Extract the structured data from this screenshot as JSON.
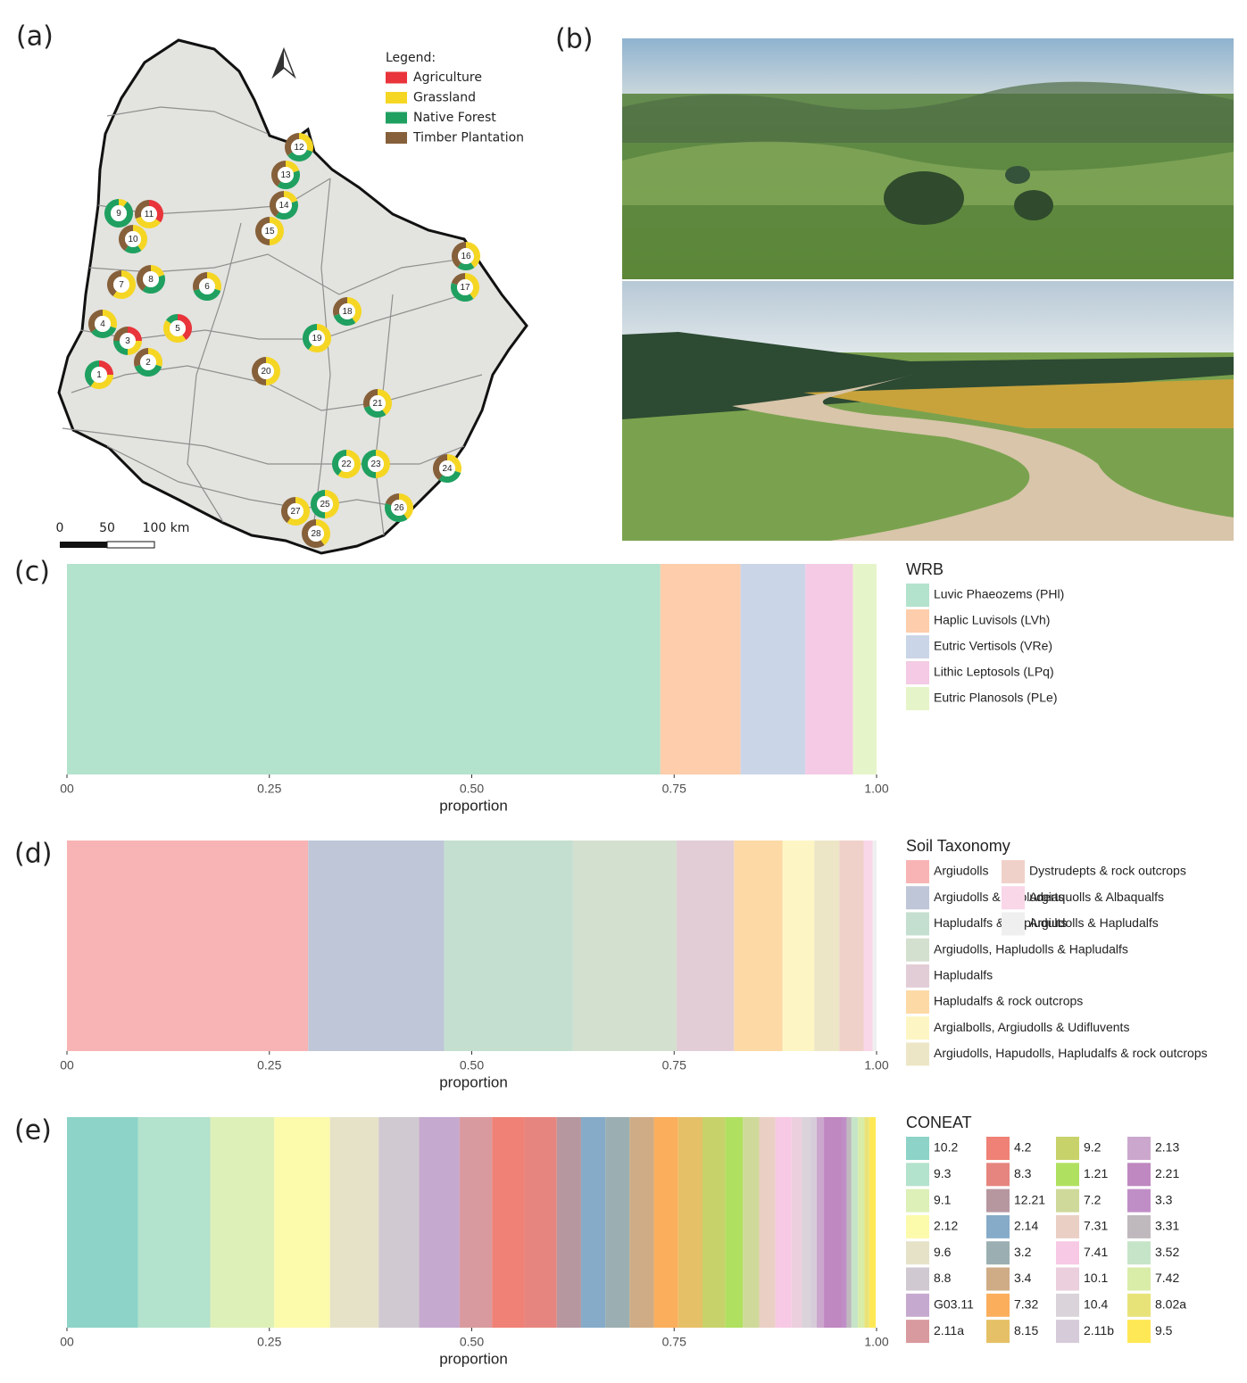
{
  "panels": [
    "(a)",
    "(b)",
    "(c)",
    "(d)",
    "(e)"
  ],
  "map": {
    "legend_title": "Legend:",
    "classes": [
      {
        "name": "Agriculture",
        "color": "#e8343a"
      },
      {
        "name": "Grassland",
        "color": "#f5d623"
      },
      {
        "name": "Native Forest",
        "color": "#1fa060"
      },
      {
        "name": "Timber Plantation",
        "color": "#86603a"
      }
    ],
    "sites": [
      {
        "label": "1",
        "values": [
          25,
          35,
          40,
          0
        ]
      },
      {
        "label": "2",
        "values": [
          0,
          30,
          40,
          30
        ]
      },
      {
        "label": "3",
        "values": [
          25,
          25,
          25,
          25
        ]
      },
      {
        "label": "4",
        "values": [
          0,
          30,
          35,
          35
        ]
      },
      {
        "label": "5",
        "values": [
          40,
          45,
          15,
          0
        ]
      },
      {
        "label": "6",
        "values": [
          0,
          30,
          40,
          30
        ]
      },
      {
        "label": "7",
        "values": [
          0,
          60,
          0,
          40
        ]
      },
      {
        "label": "8",
        "values": [
          0,
          20,
          40,
          40
        ]
      },
      {
        "label": "9",
        "values": [
          0,
          10,
          90,
          0
        ]
      },
      {
        "label": "10",
        "values": [
          0,
          40,
          20,
          40
        ]
      },
      {
        "label": "11",
        "values": [
          35,
          35,
          0,
          30
        ]
      },
      {
        "label": "12",
        "values": [
          0,
          30,
          35,
          35
        ]
      },
      {
        "label": "13",
        "values": [
          0,
          20,
          40,
          40
        ]
      },
      {
        "label": "14",
        "values": [
          0,
          20,
          40,
          40
        ]
      },
      {
        "label": "15",
        "values": [
          0,
          50,
          0,
          50
        ]
      },
      {
        "label": "16",
        "values": [
          0,
          40,
          20,
          40
        ]
      },
      {
        "label": "17",
        "values": [
          0,
          40,
          40,
          20
        ]
      },
      {
        "label": "18",
        "values": [
          0,
          40,
          30,
          30
        ]
      },
      {
        "label": "19",
        "values": [
          0,
          60,
          40,
          0
        ]
      },
      {
        "label": "20",
        "values": [
          0,
          50,
          0,
          50
        ]
      },
      {
        "label": "21",
        "values": [
          0,
          40,
          30,
          30
        ]
      },
      {
        "label": "22",
        "values": [
          0,
          60,
          40,
          0
        ]
      },
      {
        "label": "23",
        "values": [
          0,
          50,
          50,
          0
        ]
      },
      {
        "label": "24",
        "values": [
          0,
          30,
          30,
          40
        ]
      },
      {
        "label": "25",
        "values": [
          0,
          50,
          50,
          0
        ]
      },
      {
        "label": "26",
        "values": [
          0,
          40,
          40,
          20
        ]
      },
      {
        "label": "27",
        "values": [
          0,
          60,
          0,
          40
        ]
      },
      {
        "label": "28",
        "values": [
          0,
          40,
          0,
          60
        ]
      }
    ],
    "scale_labels": [
      "0",
      "50",
      "100 km"
    ]
  },
  "chart_data": [
    {
      "type": "stacked-bar",
      "legend_title": "WRB",
      "xlabel": "proportion",
      "xlim": [
        0,
        1
      ],
      "xticks": [
        {
          "value": 0,
          "label": "00"
        },
        {
          "value": 0.25,
          "label": "0.25"
        },
        {
          "value": 0.5,
          "label": "0.50"
        },
        {
          "value": 0.75,
          "label": "0.75"
        },
        {
          "value": 1,
          "label": "1.00"
        }
      ],
      "series": [
        {
          "name": "Luvic Phaeozems (PHl)",
          "color": "#b3e2cd",
          "values": [
            0.733
          ]
        },
        {
          "name": "Haplic Luvisols (LVh)",
          "color": "#fdcdac",
          "values": [
            0.099
          ]
        },
        {
          "name": "Eutric Vertisols (VRe)",
          "color": "#cbd5e8",
          "values": [
            0.08
          ]
        },
        {
          "name": "Lithic Leptosols (LPq)",
          "color": "#f4cae4",
          "values": [
            0.059
          ]
        },
        {
          "name": "Eutric Planosols (PLe)",
          "color": "#e6f5c9",
          "values": [
            0.029
          ]
        }
      ]
    },
    {
      "type": "stacked-bar",
      "legend_title": "Soil Taxonomy",
      "xlabel": "proportion",
      "xlim": [
        0,
        1
      ],
      "xticks": [
        {
          "value": 0,
          "label": "00"
        },
        {
          "value": 0.25,
          "label": "0.25"
        },
        {
          "value": 0.5,
          "label": "0.50"
        },
        {
          "value": 0.75,
          "label": "0.75"
        },
        {
          "value": 1,
          "label": "1.00"
        }
      ],
      "series": [
        {
          "name": "Argiudolls",
          "color": "#f8b4b4",
          "values": [
            0.298
          ]
        },
        {
          "name": "Argiudolls & Hapluderts",
          "color": "#bec6d8",
          "values": [
            0.168
          ]
        },
        {
          "name": "Hapludalfs & Hapludults",
          "color": "#c4dfcf",
          "values": [
            0.159
          ]
        },
        {
          "name": "Argiudolls, Hapludolls & Hapludalfs",
          "color": "#d4e0cf",
          "values": [
            0.128
          ]
        },
        {
          "name": "Hapludalfs",
          "color": "#e2cdd6",
          "values": [
            0.071
          ]
        },
        {
          "name": "Hapludalfs & rock outcrops",
          "color": "#fdd9a6",
          "values": [
            0.06
          ]
        },
        {
          "name": "Argialbolls, Argiudolls & Udifluvents",
          "color": "#fdf6c4",
          "values": [
            0.039
          ]
        },
        {
          "name": "Argiudolls, Hapudolls, Hapludalfs & rock outcrops",
          "color": "#ede6c6",
          "values": [
            0.031
          ]
        },
        {
          "name": "Dystrudepts & rock outcrops",
          "color": "#f0d1c9",
          "values": [
            0.03
          ]
        },
        {
          "name": "Argiaquolls & Albaqualfs",
          "color": "#f9d6e8",
          "values": [
            0.011
          ]
        },
        {
          "name": "Argiudolls & Hapludalfs",
          "color": "#efefef",
          "values": [
            0.005
          ]
        }
      ]
    },
    {
      "type": "stacked-bar",
      "legend_title": "CONEAT",
      "xlabel": "proportion",
      "xlim": [
        0,
        1
      ],
      "xticks": [
        {
          "value": 0,
          "label": "00"
        },
        {
          "value": 0.25,
          "label": "0.25"
        },
        {
          "value": 0.5,
          "label": "0.50"
        },
        {
          "value": 0.75,
          "label": "0.75"
        },
        {
          "value": 1,
          "label": "1.00"
        }
      ],
      "series": [
        {
          "name": "10.2",
          "color": "#8dd3c7",
          "values": [
            0.088
          ]
        },
        {
          "name": "9.3",
          "color": "#b3e2cd",
          "values": [
            0.089
          ]
        },
        {
          "name": "9.1",
          "color": "#ddf0b8",
          "values": [
            0.079
          ]
        },
        {
          "name": "2.12",
          "color": "#fcfaab",
          "values": [
            0.069
          ]
        },
        {
          "name": "9.6",
          "color": "#e5e2c8",
          "values": [
            0.06
          ]
        },
        {
          "name": "8.8",
          "color": "#d0c9d1",
          "values": [
            0.05
          ]
        },
        {
          "name": "G03.11",
          "color": "#c6a9cf",
          "values": [
            0.05
          ]
        },
        {
          "name": "2.11a",
          "color": "#d99a9f",
          "values": [
            0.04
          ]
        },
        {
          "name": "4.2",
          "color": "#ef8176",
          "values": [
            0.04
          ]
        },
        {
          "name": "8.3",
          "color": "#e6857f",
          "values": [
            0.04
          ]
        },
        {
          "name": "12.21",
          "color": "#b697a0",
          "values": [
            0.03
          ]
        },
        {
          "name": "2.14",
          "color": "#86abc9",
          "values": [
            0.03
          ]
        },
        {
          "name": "3.2",
          "color": "#9bafb2",
          "values": [
            0.03
          ]
        },
        {
          "name": "3.4",
          "color": "#cfac86",
          "values": [
            0.03
          ]
        },
        {
          "name": "7.32",
          "color": "#fbae5c",
          "values": [
            0.03
          ]
        },
        {
          "name": "8.15",
          "color": "#e5c066",
          "values": [
            0.03
          ]
        },
        {
          "name": "9.2",
          "color": "#c8d26a",
          "values": [
            0.028
          ]
        },
        {
          "name": "1.21",
          "color": "#b0e060",
          "values": [
            0.022
          ]
        },
        {
          "name": "7.2",
          "color": "#cfd99a",
          "values": [
            0.02
          ]
        },
        {
          "name": "7.31",
          "color": "#eacfc4",
          "values": [
            0.02
          ]
        },
        {
          "name": "7.41",
          "color": "#f7c9e4",
          "values": [
            0.02
          ]
        },
        {
          "name": "10.1",
          "color": "#ebcfdd",
          "values": [
            0.013
          ]
        },
        {
          "name": "10.4",
          "color": "#dad3da",
          "values": [
            0.011
          ]
        },
        {
          "name": "2.11b",
          "color": "#d6ccd9",
          "values": [
            0.007
          ]
        },
        {
          "name": "2.13",
          "color": "#cca7cd",
          "values": [
            0.009
          ]
        },
        {
          "name": "2.21",
          "color": "#bf88c0",
          "values": [
            0.022
          ]
        },
        {
          "name": "3.3",
          "color": "#c08ec7",
          "values": [
            0.006
          ]
        },
        {
          "name": "3.31",
          "color": "#bfb9bd",
          "values": [
            0.006
          ]
        },
        {
          "name": "3.52",
          "color": "#c6e4c7",
          "values": [
            0.008
          ]
        },
        {
          "name": "7.42",
          "color": "#d9eca8",
          "values": [
            0.008
          ]
        },
        {
          "name": "8.02a",
          "color": "#e8e379",
          "values": [
            0.006
          ]
        },
        {
          "name": "9.5",
          "color": "#ffe855",
          "values": [
            0.008
          ]
        }
      ]
    }
  ]
}
